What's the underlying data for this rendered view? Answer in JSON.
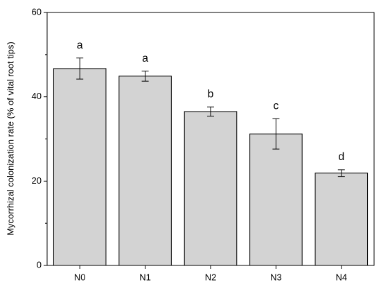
{
  "chart_data": {
    "type": "bar",
    "ylabel": "Mycorrhizal colonization rate (% of vital root tips)",
    "categories": [
      "N0",
      "N1",
      "N2",
      "N3",
      "N4"
    ],
    "values": [
      46.7,
      44.9,
      36.5,
      31.2,
      21.9
    ],
    "errors": [
      2.5,
      1.2,
      1.1,
      3.6,
      0.8
    ],
    "group_letters": [
      "a",
      "a",
      "b",
      "c",
      "d"
    ],
    "color": "#d3d3d3",
    "ylim": [
      0,
      60
    ],
    "yticks": [
      0,
      20,
      40,
      60
    ],
    "yminor": [
      10,
      30,
      50
    ],
    "grid": false
  }
}
